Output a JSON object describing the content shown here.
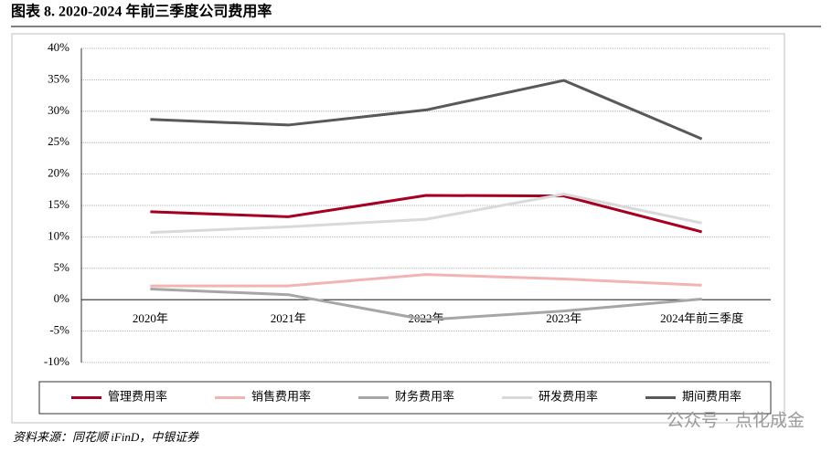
{
  "chart_data": {
    "type": "line",
    "title": "图表 8. 2020-2024 年前三季度公司费用率",
    "categories": [
      "2020年",
      "2021年",
      "2022年",
      "2023年",
      "2024年前三季度"
    ],
    "series": [
      {
        "name": "管理费用率",
        "color": "#a50021",
        "values": [
          14.0,
          13.2,
          16.6,
          16.5,
          10.8
        ]
      },
      {
        "name": "销售费用率",
        "color": "#f2b3b3",
        "values": [
          2.2,
          2.2,
          4.0,
          3.3,
          2.3
        ]
      },
      {
        "name": "财务费用率",
        "color": "#a6a6a6",
        "values": [
          1.7,
          0.8,
          -3.2,
          -1.8,
          0.1
        ]
      },
      {
        "name": "研发费用率",
        "color": "#d9d9d9",
        "values": [
          10.7,
          11.6,
          12.8,
          16.8,
          12.2
        ]
      },
      {
        "name": "期间费用率",
        "color": "#595959",
        "values": [
          28.7,
          27.8,
          30.2,
          34.9,
          25.6
        ]
      }
    ],
    "ylim": [
      -10,
      40
    ],
    "yticks": [
      {
        "value": -10,
        "label": "-10%"
      },
      {
        "value": -5,
        "label": "-5%"
      },
      {
        "value": 0,
        "label": "0%"
      },
      {
        "value": 5,
        "label": "5%"
      },
      {
        "value": 10,
        "label": "10%"
      },
      {
        "value": 15,
        "label": "15%"
      },
      {
        "value": 20,
        "label": "20%"
      },
      {
        "value": 25,
        "label": "25%"
      },
      {
        "value": 30,
        "label": "30%"
      },
      {
        "value": 35,
        "label": "35%"
      },
      {
        "value": 40,
        "label": "40%"
      }
    ],
    "grid": true,
    "legend": "bottom",
    "source": "资料来源：同花顺 iFinD，中银证券",
    "watermark": "公众号 · 点化成金"
  }
}
